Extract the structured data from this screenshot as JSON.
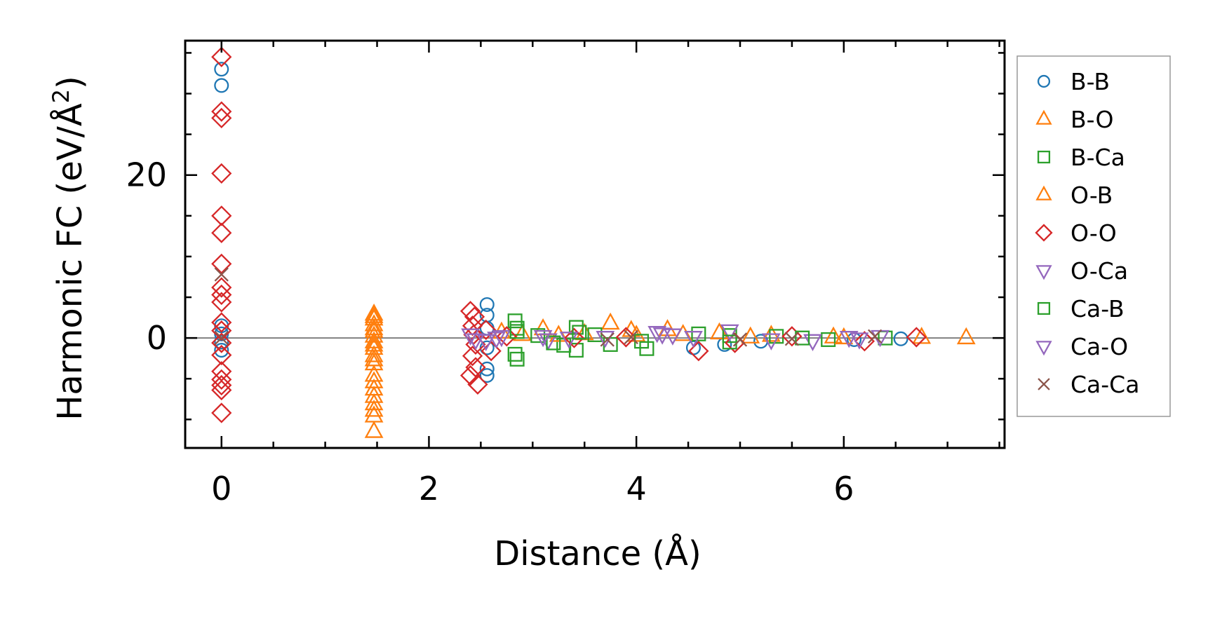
{
  "chart_data": {
    "type": "scatter",
    "title": "",
    "xlabel": "Distance (Å)",
    "ylabel_main": "Harmonic FC (eV/Å",
    "ylabel_sup": "2",
    "ylabel_tail": ")",
    "xlim": [
      -0.35,
      7.55
    ],
    "ylim": [
      -13.5,
      36.5
    ],
    "xticks": [
      0,
      2,
      4,
      6
    ],
    "yticks": [
      0,
      20
    ],
    "reference_line_y": 0,
    "legend_position": "outside-right",
    "series": [
      {
        "name": "B-B",
        "marker": "circle",
        "color": "#1f77b4",
        "points": [
          [
            0,
            33
          ],
          [
            0,
            31
          ],
          [
            0,
            1.5
          ],
          [
            0,
            0.5
          ],
          [
            0,
            -0.5
          ],
          [
            0,
            -1.5
          ],
          [
            2.56,
            4.1
          ],
          [
            2.56,
            2.8
          ],
          [
            2.56,
            1.2
          ],
          [
            2.56,
            -1.2
          ],
          [
            2.56,
            -3.8
          ],
          [
            2.56,
            -4.6
          ],
          [
            4.55,
            -1.2
          ],
          [
            4.85,
            -0.8
          ],
          [
            5.2,
            -0.4
          ],
          [
            6.1,
            -0.2
          ],
          [
            6.55,
            -0.1
          ]
        ]
      },
      {
        "name": "B-O",
        "marker": "triangle-up",
        "color": "#ff7f0e",
        "points": [
          [
            1.47,
            2.9
          ],
          [
            1.47,
            2.3
          ],
          [
            1.47,
            1.6
          ],
          [
            1.47,
            0.8
          ],
          [
            1.47,
            0.2
          ],
          [
            1.47,
            -0.5
          ],
          [
            1.47,
            -1.3
          ],
          [
            1.47,
            -2.2
          ],
          [
            1.47,
            -3.2
          ],
          [
            1.47,
            -4.6
          ],
          [
            1.47,
            -5.4
          ],
          [
            1.47,
            -6.3
          ],
          [
            1.47,
            -7.2
          ],
          [
            1.47,
            -8.1
          ],
          [
            1.47,
            -8.9
          ],
          [
            1.47,
            -9.6
          ],
          [
            1.47,
            -11.5
          ],
          [
            2.9,
            0.4
          ],
          [
            3.1,
            1.1
          ],
          [
            3.5,
            0.5
          ],
          [
            3.75,
            1.8
          ],
          [
            4.0,
            0.3
          ],
          [
            4.3,
            1.0
          ],
          [
            4.8,
            0.6
          ],
          [
            5.3,
            0.3
          ],
          [
            5.9,
            0.1
          ],
          [
            6.75,
            0.05
          ],
          [
            7.18,
            0.0
          ]
        ]
      },
      {
        "name": "B-Ca",
        "marker": "square",
        "color": "#2ca02c",
        "points": [
          [
            2.83,
            2.1
          ],
          [
            2.85,
            1.2
          ],
          [
            2.85,
            -2.6
          ],
          [
            2.83,
            -2.0
          ],
          [
            3.05,
            0.3
          ],
          [
            3.42,
            1.3
          ],
          [
            3.42,
            -1.5
          ],
          [
            3.3,
            -0.9
          ],
          [
            3.6,
            0.4
          ],
          [
            3.75,
            -0.8
          ],
          [
            4.1,
            -1.3
          ],
          [
            4.6,
            0.5
          ],
          [
            4.9,
            0.3
          ],
          [
            5.35,
            0.2
          ],
          [
            5.85,
            -0.2
          ],
          [
            6.4,
            0.0
          ]
        ]
      },
      {
        "name": "O-B",
        "marker": "triangle-up",
        "color": "#ff7f0e",
        "points": [
          [
            1.47,
            2.6
          ],
          [
            1.47,
            1.1
          ],
          [
            1.47,
            -0.9
          ],
          [
            1.47,
            -2.7
          ],
          [
            2.7,
            0.7
          ],
          [
            3.25,
            0.3
          ],
          [
            3.95,
            0.9
          ],
          [
            4.45,
            0.4
          ],
          [
            5.1,
            0.1
          ],
          [
            6.0,
            0.0
          ]
        ]
      },
      {
        "name": "O-O",
        "marker": "diamond",
        "color": "#d62728",
        "points": [
          [
            0,
            34.5
          ],
          [
            0,
            27.8
          ],
          [
            0,
            27.0
          ],
          [
            0,
            20.2
          ],
          [
            0,
            15.0
          ],
          [
            0,
            12.9
          ],
          [
            0,
            9.1
          ],
          [
            0,
            6.2
          ],
          [
            0,
            5.3
          ],
          [
            0,
            4.4
          ],
          [
            0,
            1.9
          ],
          [
            0,
            0.9
          ],
          [
            0,
            -0.6
          ],
          [
            0,
            -2.1
          ],
          [
            0,
            -4.1
          ],
          [
            0,
            -5.1
          ],
          [
            0,
            -5.8
          ],
          [
            0,
            -6.4
          ],
          [
            0,
            -9.2
          ],
          [
            2.4,
            3.3
          ],
          [
            2.44,
            2.6
          ],
          [
            2.42,
            1.5
          ],
          [
            2.43,
            0.4
          ],
          [
            2.45,
            -0.8
          ],
          [
            2.42,
            -2.2
          ],
          [
            2.45,
            -3.6
          ],
          [
            2.4,
            -4.6
          ],
          [
            2.47,
            -5.7
          ],
          [
            2.55,
            1.0
          ],
          [
            2.6,
            -1.6
          ],
          [
            2.75,
            0.2
          ],
          [
            3.4,
            0.0
          ],
          [
            3.9,
            0.1
          ],
          [
            4.6,
            -1.6
          ],
          [
            4.95,
            -0.6
          ],
          [
            5.5,
            0.2
          ],
          [
            6.2,
            -0.4
          ],
          [
            6.7,
            0.1
          ]
        ]
      },
      {
        "name": "O-Ca",
        "marker": "triangle-down",
        "color": "#9467bd",
        "points": [
          [
            2.4,
            0.4
          ],
          [
            2.55,
            -0.3
          ],
          [
            2.7,
            0.2
          ],
          [
            3.15,
            -0.2
          ],
          [
            3.35,
            0.0
          ],
          [
            4.2,
            0.7
          ],
          [
            4.35,
            0.4
          ],
          [
            4.9,
            0.9
          ],
          [
            5.7,
            -0.3
          ],
          [
            6.15,
            -0.1
          ],
          [
            6.35,
            0.2
          ]
        ]
      },
      {
        "name": "Ca-B",
        "marker": "square",
        "color": "#2ca02c",
        "points": [
          [
            2.85,
            0.8
          ],
          [
            3.2,
            -0.6
          ],
          [
            3.45,
            0.7
          ],
          [
            4.05,
            -0.4
          ],
          [
            4.9,
            -0.5
          ],
          [
            5.6,
            0.0
          ]
        ]
      },
      {
        "name": "Ca-O",
        "marker": "triangle-down",
        "color": "#9467bd",
        "points": [
          [
            2.45,
            -0.2
          ],
          [
            2.65,
            0.0
          ],
          [
            3.1,
            0.2
          ],
          [
            3.7,
            0.1
          ],
          [
            4.25,
            0.5
          ],
          [
            4.55,
            0.1
          ],
          [
            5.3,
            -0.2
          ],
          [
            6.05,
            0.1
          ]
        ]
      },
      {
        "name": "Ca-Ca",
        "marker": "x",
        "color": "#8c564b",
        "points": [
          [
            0,
            7.8
          ],
          [
            0,
            0.0
          ],
          [
            3.72,
            -0.2
          ],
          [
            3.95,
            0.1
          ],
          [
            5.0,
            -0.2
          ],
          [
            5.5,
            -0.1
          ],
          [
            6.3,
            0.2
          ]
        ]
      }
    ]
  }
}
